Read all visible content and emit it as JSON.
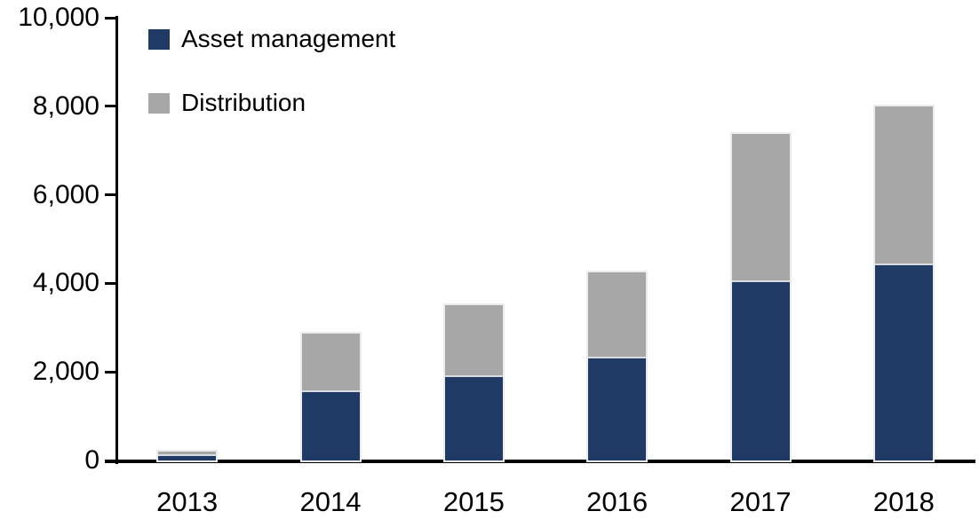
{
  "chart_data": {
    "type": "bar",
    "stacked": true,
    "title": "",
    "xlabel": "",
    "ylabel": "",
    "categories": [
      "2013",
      "2014",
      "2015",
      "2016",
      "2017",
      "2018"
    ],
    "series": [
      {
        "name": "Asset management",
        "color": "#1f3a64",
        "values": [
          100,
          1550,
          1880,
          2300,
          4030,
          4400
        ]
      },
      {
        "name": "Distribution",
        "color": "#a7a7a7",
        "values": [
          100,
          1310,
          1620,
          1950,
          3340,
          3600
        ]
      }
    ],
    "ylim": [
      0,
      10000
    ],
    "ytick_values": [
      0,
      2000,
      4000,
      6000,
      8000,
      10000
    ],
    "ytick_labels": [
      "0",
      "2,000",
      "4,000",
      "6,000",
      "8,000",
      "10,000"
    ],
    "grid": false,
    "legend_position": "top-left",
    "axis_color": "#000000",
    "background_color": "#ffffff"
  }
}
